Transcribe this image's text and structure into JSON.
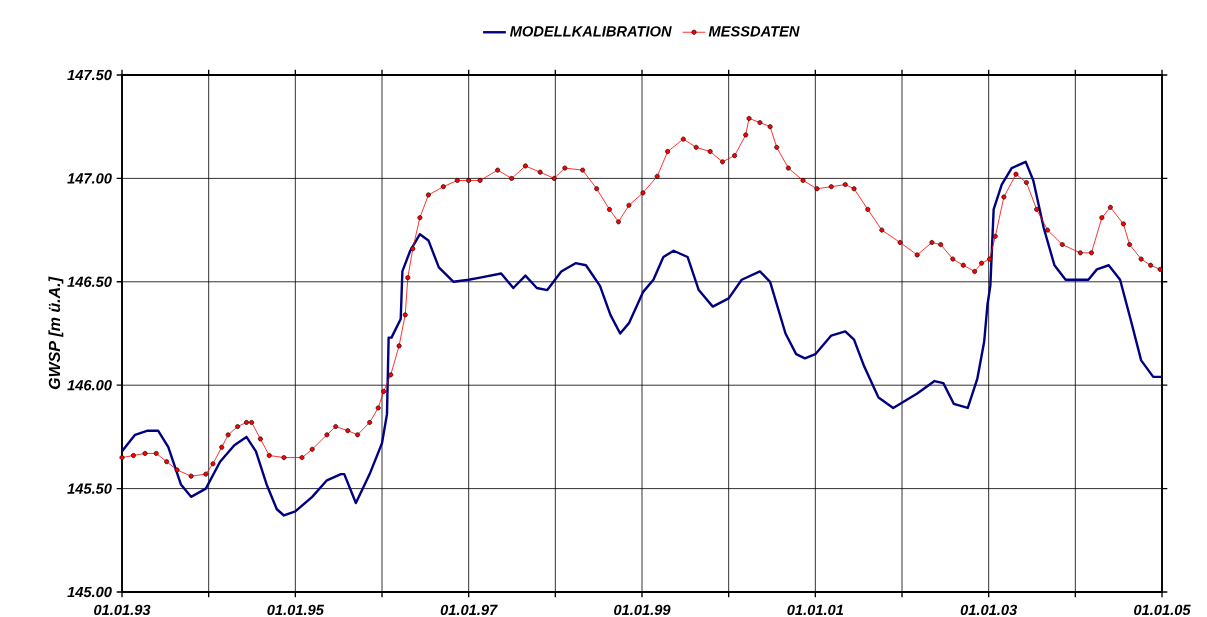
{
  "chart_data": {
    "type": "line",
    "ylabel": "GWSP [m ü.A.]",
    "xlim": [
      "1993-01-01",
      "2005-01-01"
    ],
    "xticks": [
      {
        "value": "1993-01-01",
        "label": "01.01.93"
      },
      {
        "value": "1994-01-01",
        "label": null
      },
      {
        "value": "1995-01-01",
        "label": "01.01.95"
      },
      {
        "value": "1996-01-01",
        "label": null
      },
      {
        "value": "1997-01-01",
        "label": "01.01.97"
      },
      {
        "value": "1998-01-01",
        "label": null
      },
      {
        "value": "1999-01-01",
        "label": "01.01.99"
      },
      {
        "value": "2000-01-01",
        "label": null
      },
      {
        "value": "2001-01-01",
        "label": "01.01.01"
      },
      {
        "value": "2002-01-01",
        "label": null
      },
      {
        "value": "2003-01-01",
        "label": "01.01.03"
      },
      {
        "value": "2004-01-01",
        "label": null
      },
      {
        "value": "2005-01-01",
        "label": "01.01.05"
      }
    ],
    "ylim": [
      145.0,
      147.5
    ],
    "yticks": [
      {
        "value": 145.0,
        "label": "145.00"
      },
      {
        "value": 145.5,
        "label": "145.50"
      },
      {
        "value": 146.0,
        "label": "146.00"
      },
      {
        "value": 146.5,
        "label": "146.50"
      },
      {
        "value": 147.0,
        "label": "147.00"
      },
      {
        "value": 147.5,
        "label": "147.50"
      }
    ],
    "grid": true,
    "legend": "top",
    "series": [
      {
        "name": "MODELLKALIBRATION",
        "color": "#000080",
        "marker": "none",
        "x": [
          "1993-01-01",
          "1993-02-25",
          "1993-04-19",
          "1993-06-02",
          "1993-07-15",
          "1993-09-06",
          "1993-10-19",
          "1993-12-20",
          "1994-02-18",
          "1994-04-19",
          "1994-06-09",
          "1994-07-19",
          "1994-09-02",
          "1994-10-15",
          "1994-11-14",
          "1995-01-01",
          "1995-03-13",
          "1995-05-14",
          "1995-07-12",
          "1995-07-26",
          "1995-09-13",
          "1995-11-10",
          "1996-01-01",
          "1996-01-22",
          "1996-01-29",
          "1996-02-10",
          "1996-03-20",
          "1996-03-27",
          "1996-04-29",
          "1996-06-09",
          "1996-07-15",
          "1996-08-28",
          "1996-10-29",
          "1997-01-01",
          "1997-02-18",
          "1997-05-18",
          "1997-07-08",
          "1997-08-28",
          "1997-10-15",
          "1997-11-28",
          "1998-01-26",
          "1998-03-27",
          "1998-05-10",
          "1998-07-08",
          "1998-08-21",
          "1998-10-01",
          "1998-11-07",
          "1999-01-05",
          "1999-02-18",
          "1999-04-01",
          "1999-05-14",
          "1999-07-12",
          "1999-08-28",
          "1999-10-26",
          "2000-01-01",
          "2000-02-25",
          "2000-05-12",
          "2000-06-24",
          "2000-08-28",
          "2000-10-12",
          "2000-11-18",
          "2001-01-01",
          "2001-03-09",
          "2001-05-07",
          "2001-06-13",
          "2001-07-26",
          "2001-09-24",
          "2001-11-25",
          "2002-03-06",
          "2002-05-18",
          "2002-06-24",
          "2002-08-07",
          "2002-10-05",
          "2002-11-14",
          "2002-12-13",
          "2002-12-27",
          "2003-01-08",
          "2003-01-22",
          "2003-02-25",
          "2003-04-08",
          "2003-06-06",
          "2003-07-08",
          "2003-08-21",
          "2003-10-05",
          "2003-11-21",
          "2004-02-25",
          "2004-04-01",
          "2004-05-21",
          "2004-07-08",
          "2004-08-21",
          "2004-10-05",
          "2004-11-25",
          "2005-01-01"
        ],
        "values": [
          145.68,
          145.76,
          145.78,
          145.78,
          145.7,
          145.52,
          145.46,
          145.5,
          145.63,
          145.71,
          145.75,
          145.68,
          145.52,
          145.4,
          145.37,
          145.39,
          145.46,
          145.54,
          145.57,
          145.57,
          145.43,
          145.57,
          145.72,
          145.86,
          146.23,
          146.23,
          146.32,
          146.55,
          146.65,
          146.73,
          146.7,
          146.57,
          146.5,
          146.51,
          146.52,
          146.54,
          146.47,
          146.53,
          146.47,
          146.46,
          146.55,
          146.59,
          146.58,
          146.48,
          146.34,
          146.25,
          146.3,
          146.45,
          146.51,
          146.62,
          146.65,
          146.62,
          146.46,
          146.38,
          146.42,
          146.51,
          146.55,
          146.5,
          146.25,
          146.15,
          146.13,
          146.15,
          146.24,
          146.26,
          146.22,
          146.09,
          145.94,
          145.89,
          145.96,
          146.02,
          146.01,
          145.91,
          145.89,
          146.03,
          146.21,
          146.39,
          146.48,
          146.85,
          146.97,
          147.05,
          147.08,
          146.99,
          146.76,
          146.58,
          146.51,
          146.51,
          146.56,
          146.58,
          146.51,
          146.32,
          146.12,
          146.04,
          146.04
        ]
      },
      {
        "name": "MESSDATEN",
        "color": "#ff0000",
        "marker": "circle",
        "x": [
          "1993-01-01",
          "1993-02-18",
          "1993-04-08",
          "1993-05-25",
          "1993-07-08",
          "1993-08-21",
          "1993-10-19",
          "1993-12-20",
          "1994-01-19",
          "1994-02-25",
          "1994-03-24",
          "1994-05-03",
          "1994-06-09",
          "1994-07-01",
          "1994-08-07",
          "1994-09-13",
          "1994-11-14",
          "1995-01-29",
          "1995-03-13",
          "1995-05-14",
          "1995-06-20",
          "1995-08-10",
          "1995-09-20",
          "1995-11-10",
          "1995-12-16",
          "1996-01-08",
          "1996-02-07",
          "1996-03-13",
          "1996-04-08",
          "1996-04-19",
          "1996-05-10",
          "1996-06-09",
          "1996-07-15",
          "1996-09-16",
          "1996-11-14",
          "1997-01-01",
          "1997-02-18",
          "1997-05-03",
          "1997-07-01",
          "1997-08-28",
          "1997-10-29",
          "1997-12-27",
          "1998-02-10",
          "1998-04-26",
          "1998-06-24",
          "1998-08-17",
          "1998-09-24",
          "1998-11-07",
          "1999-01-05",
          "1999-03-06",
          "1999-04-19",
          "1999-06-24",
          "1999-08-17",
          "1999-10-15",
          "1999-12-06",
          "2000-01-26",
          "2000-03-13",
          "2000-03-27",
          "2000-05-12",
          "2000-06-24",
          "2000-07-22",
          "2000-09-09",
          "2000-11-10",
          "2001-01-08",
          "2001-03-09",
          "2001-05-07",
          "2001-06-13",
          "2001-08-10",
          "2001-10-08",
          "2001-12-24",
          "2002-03-06",
          "2002-05-07",
          "2002-06-13",
          "2002-08-03",
          "2002-09-16",
          "2002-11-03",
          "2002-12-02",
          "2003-01-05",
          "2003-01-29",
          "2003-03-06",
          "2003-04-26",
          "2003-06-09",
          "2003-07-22",
          "2003-09-06",
          "2003-11-07",
          "2004-01-22",
          "2004-03-09",
          "2004-04-22",
          "2004-05-28",
          "2004-07-22",
          "2004-08-17",
          "2004-10-05",
          "2004-11-14",
          "2004-12-24"
        ],
        "values": [
          145.65,
          145.66,
          145.67,
          145.67,
          145.63,
          145.59,
          145.56,
          145.57,
          145.62,
          145.7,
          145.76,
          145.8,
          145.82,
          145.82,
          145.74,
          145.66,
          145.65,
          145.65,
          145.69,
          145.76,
          145.8,
          145.78,
          145.76,
          145.82,
          145.89,
          145.97,
          146.05,
          146.19,
          146.34,
          146.52,
          146.66,
          146.81,
          146.92,
          146.96,
          146.99,
          146.99,
          146.99,
          147.04,
          147.0,
          147.06,
          147.03,
          147.0,
          147.05,
          147.04,
          146.95,
          146.85,
          146.79,
          146.87,
          146.93,
          147.01,
          147.13,
          147.19,
          147.15,
          147.13,
          147.08,
          147.11,
          147.21,
          147.29,
          147.27,
          147.25,
          147.15,
          147.05,
          146.99,
          146.95,
          146.96,
          146.97,
          146.95,
          146.85,
          146.75,
          146.69,
          146.63,
          146.69,
          146.68,
          146.61,
          146.58,
          146.55,
          146.59,
          146.61,
          146.72,
          146.91,
          147.02,
          146.98,
          146.85,
          146.75,
          146.68,
          146.64,
          146.64,
          146.81,
          146.86,
          146.78,
          146.68,
          146.61,
          146.58,
          146.56
        ]
      }
    ]
  }
}
